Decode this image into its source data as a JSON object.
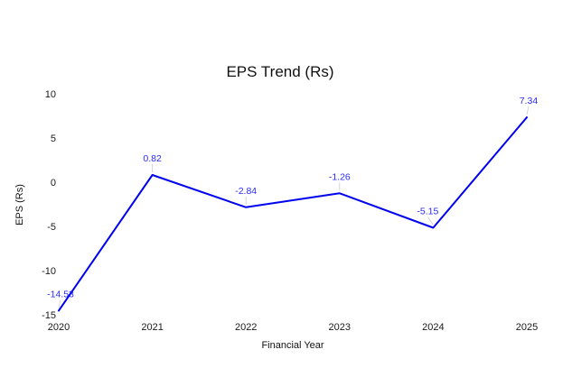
{
  "chart_data": {
    "type": "line",
    "title": "EPS Trend (Rs)",
    "xlabel": "Financial Year",
    "ylabel": "EPS (Rs)",
    "categories": [
      "2020",
      "2021",
      "2022",
      "2023",
      "2024",
      "2025"
    ],
    "values": [
      -14.53,
      0.82,
      -2.84,
      -1.26,
      -5.15,
      7.34
    ],
    "data_labels": [
      "-14.53",
      "0.82",
      "-2.84",
      "-1.26",
      "-5.15",
      "7.34"
    ],
    "y_ticks": [
      10,
      5,
      0,
      -5,
      -10,
      -15
    ],
    "ylim": [
      -15,
      10
    ],
    "grid": false,
    "legend": "none",
    "line_color": "#0000ee",
    "label_color": "#2b2bff",
    "leader_color": "#cccccc",
    "background_color": "#ffffff"
  }
}
